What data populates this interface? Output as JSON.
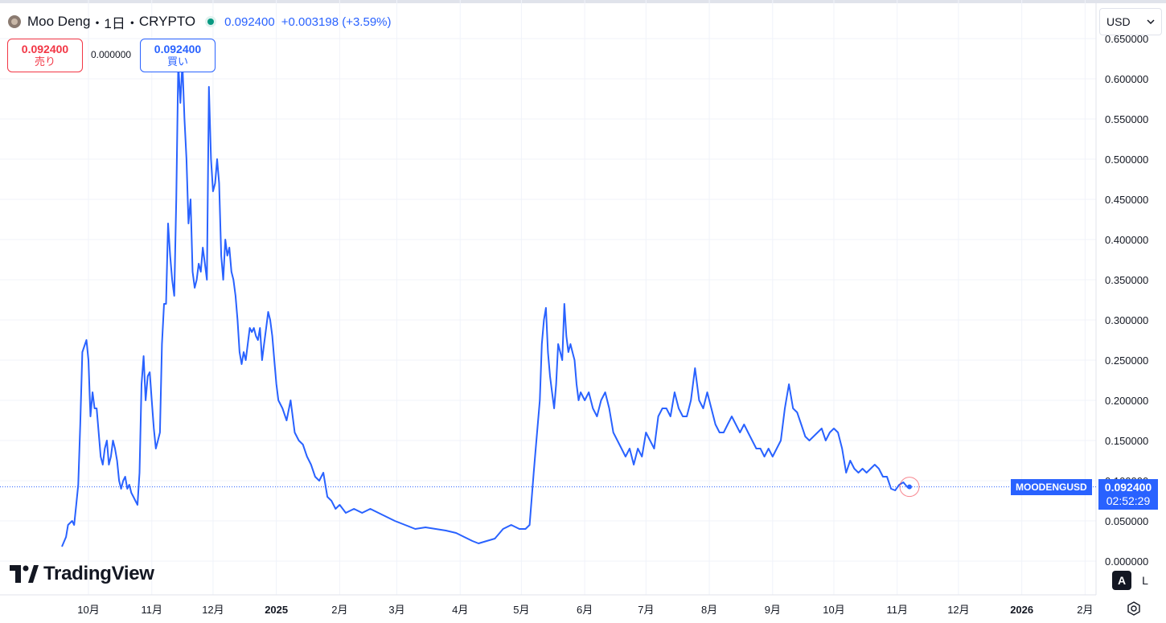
{
  "header": {
    "symbol": "Moo Deng",
    "interval_sep": "・1日・",
    "exchange": "CRYPTO",
    "last_price": "0.092400",
    "change": "+0.003198 (+3.59%)"
  },
  "trade": {
    "sell_price": "0.092400",
    "sell_label": "売り",
    "spread": "0.000000",
    "buy_price": "0.092400",
    "buy_label": "買い"
  },
  "currency": {
    "selected": "USD"
  },
  "price_tag": {
    "symbol": "MOODENGUSD",
    "price": "0.092400",
    "countdown": "02:52:29"
  },
  "logo": {
    "text": "TradingView"
  },
  "scale_buttons": {
    "auto": "A",
    "log": "L"
  },
  "colors": {
    "line": "#2962ff",
    "grid": "#f0f3fa",
    "text": "#131722",
    "sell": "#f23645",
    "accent": "#2962ff"
  },
  "chart_data": {
    "type": "line",
    "title": "Moo Deng・1日・CRYPTO",
    "ylim": [
      0,
      0.65
    ],
    "y_ticks": [
      "0.650000",
      "0.600000",
      "0.550000",
      "0.500000",
      "0.450000",
      "0.400000",
      "0.350000",
      "0.300000",
      "0.250000",
      "0.200000",
      "0.150000",
      "0.100000",
      "0.050000",
      "0.000000"
    ],
    "y_tick_values": [
      0.65,
      0.6,
      0.55,
      0.5,
      0.45,
      0.4,
      0.35,
      0.3,
      0.25,
      0.2,
      0.15,
      0.1,
      0.05,
      0.0
    ],
    "x_ticks": [
      "10月",
      "11月",
      "12月",
      "2025",
      "2月",
      "3月",
      "4月",
      "5月",
      "6月",
      "7月",
      "8月",
      "9月",
      "10月",
      "11月",
      "12月",
      "2026",
      "2月"
    ],
    "x_tick_dates": [
      "2024-10-01",
      "2024-11-01",
      "2024-12-01",
      "2025-01-01",
      "2025-02-01",
      "2025-03-01",
      "2025-04-01",
      "2025-05-01",
      "2025-06-01",
      "2025-07-01",
      "2025-08-01",
      "2025-09-01",
      "2025-10-01",
      "2025-11-01",
      "2025-12-01",
      "2026-01-01",
      "2026-02-01"
    ],
    "last_value": 0.0924,
    "grid": true,
    "series": [
      {
        "points": [
          [
            "2024-09-18",
            0.018
          ],
          [
            "2024-09-20",
            0.03
          ],
          [
            "2024-09-21",
            0.045
          ],
          [
            "2024-09-23",
            0.05
          ],
          [
            "2024-09-24",
            0.045
          ],
          [
            "2024-09-25",
            0.07
          ],
          [
            "2024-09-26",
            0.095
          ],
          [
            "2024-09-27",
            0.17
          ],
          [
            "2024-09-28",
            0.26
          ],
          [
            "2024-09-30",
            0.275
          ],
          [
            "2024-10-01",
            0.25
          ],
          [
            "2024-10-02",
            0.18
          ],
          [
            "2024-10-03",
            0.21
          ],
          [
            "2024-10-04",
            0.19
          ],
          [
            "2024-10-05",
            0.19
          ],
          [
            "2024-10-06",
            0.16
          ],
          [
            "2024-10-07",
            0.13
          ],
          [
            "2024-10-08",
            0.12
          ],
          [
            "2024-10-09",
            0.14
          ],
          [
            "2024-10-10",
            0.15
          ],
          [
            "2024-10-11",
            0.12
          ],
          [
            "2024-10-12",
            0.13
          ],
          [
            "2024-10-13",
            0.15
          ],
          [
            "2024-10-14",
            0.14
          ],
          [
            "2024-10-15",
            0.125
          ],
          [
            "2024-10-16",
            0.1
          ],
          [
            "2024-10-17",
            0.09
          ],
          [
            "2024-10-18",
            0.1
          ],
          [
            "2024-10-19",
            0.105
          ],
          [
            "2024-10-20",
            0.09
          ],
          [
            "2024-10-21",
            0.095
          ],
          [
            "2024-10-22",
            0.085
          ],
          [
            "2024-10-23",
            0.08
          ],
          [
            "2024-10-24",
            0.075
          ],
          [
            "2024-10-25",
            0.07
          ],
          [
            "2024-10-26",
            0.11
          ],
          [
            "2024-10-27",
            0.22
          ],
          [
            "2024-10-28",
            0.255
          ],
          [
            "2024-10-29",
            0.2
          ],
          [
            "2024-10-30",
            0.23
          ],
          [
            "2024-10-31",
            0.235
          ],
          [
            "2024-11-01",
            0.2
          ],
          [
            "2024-11-02",
            0.165
          ],
          [
            "2024-11-03",
            0.14
          ],
          [
            "2024-11-04",
            0.15
          ],
          [
            "2024-11-05",
            0.16
          ],
          [
            "2024-11-06",
            0.27
          ],
          [
            "2024-11-07",
            0.32
          ],
          [
            "2024-11-08",
            0.32
          ],
          [
            "2024-11-09",
            0.42
          ],
          [
            "2024-11-10",
            0.38
          ],
          [
            "2024-11-11",
            0.35
          ],
          [
            "2024-11-12",
            0.33
          ],
          [
            "2024-11-13",
            0.45
          ],
          [
            "2024-11-14",
            0.62
          ],
          [
            "2024-11-15",
            0.57
          ],
          [
            "2024-11-16",
            0.62
          ],
          [
            "2024-11-17",
            0.55
          ],
          [
            "2024-11-18",
            0.5
          ],
          [
            "2024-11-19",
            0.42
          ],
          [
            "2024-11-20",
            0.45
          ],
          [
            "2024-11-21",
            0.36
          ],
          [
            "2024-11-22",
            0.34
          ],
          [
            "2024-11-23",
            0.35
          ],
          [
            "2024-11-24",
            0.37
          ],
          [
            "2024-11-25",
            0.36
          ],
          [
            "2024-11-26",
            0.39
          ],
          [
            "2024-11-27",
            0.37
          ],
          [
            "2024-11-28",
            0.35
          ],
          [
            "2024-11-29",
            0.59
          ],
          [
            "2024-11-30",
            0.5
          ],
          [
            "2024-12-01",
            0.46
          ],
          [
            "2024-12-02",
            0.47
          ],
          [
            "2024-12-03",
            0.5
          ],
          [
            "2024-12-04",
            0.47
          ],
          [
            "2024-12-05",
            0.38
          ],
          [
            "2024-12-06",
            0.35
          ],
          [
            "2024-12-07",
            0.4
          ],
          [
            "2024-12-08",
            0.38
          ],
          [
            "2024-12-09",
            0.39
          ],
          [
            "2024-12-10",
            0.36
          ],
          [
            "2024-12-11",
            0.35
          ],
          [
            "2024-12-12",
            0.33
          ],
          [
            "2024-12-13",
            0.3
          ],
          [
            "2024-12-14",
            0.26
          ],
          [
            "2024-12-15",
            0.245
          ],
          [
            "2024-12-16",
            0.26
          ],
          [
            "2024-12-17",
            0.25
          ],
          [
            "2024-12-18",
            0.27
          ],
          [
            "2024-12-19",
            0.29
          ],
          [
            "2024-12-20",
            0.285
          ],
          [
            "2024-12-21",
            0.29
          ],
          [
            "2024-12-22",
            0.28
          ],
          [
            "2024-12-23",
            0.275
          ],
          [
            "2024-12-24",
            0.29
          ],
          [
            "2024-12-25",
            0.25
          ],
          [
            "2024-12-26",
            0.27
          ],
          [
            "2024-12-27",
            0.29
          ],
          [
            "2024-12-28",
            0.31
          ],
          [
            "2024-12-29",
            0.3
          ],
          [
            "2024-12-30",
            0.28
          ],
          [
            "2024-12-31",
            0.25
          ],
          [
            "2025-01-01",
            0.22
          ],
          [
            "2025-01-02",
            0.2
          ],
          [
            "2025-01-04",
            0.19
          ],
          [
            "2025-01-06",
            0.175
          ],
          [
            "2025-01-08",
            0.2
          ],
          [
            "2025-01-10",
            0.16
          ],
          [
            "2025-01-12",
            0.15
          ],
          [
            "2025-01-14",
            0.145
          ],
          [
            "2025-01-16",
            0.13
          ],
          [
            "2025-01-18",
            0.12
          ],
          [
            "2025-01-20",
            0.105
          ],
          [
            "2025-01-22",
            0.1
          ],
          [
            "2025-01-24",
            0.11
          ],
          [
            "2025-01-26",
            0.08
          ],
          [
            "2025-01-28",
            0.075
          ],
          [
            "2025-01-30",
            0.065
          ],
          [
            "2025-02-01",
            0.07
          ],
          [
            "2025-02-04",
            0.06
          ],
          [
            "2025-02-08",
            0.065
          ],
          [
            "2025-02-12",
            0.06
          ],
          [
            "2025-02-16",
            0.065
          ],
          [
            "2025-02-20",
            0.06
          ],
          [
            "2025-02-24",
            0.055
          ],
          [
            "2025-02-28",
            0.05
          ],
          [
            "2025-03-05",
            0.045
          ],
          [
            "2025-03-10",
            0.04
          ],
          [
            "2025-03-15",
            0.042
          ],
          [
            "2025-03-20",
            0.04
          ],
          [
            "2025-03-25",
            0.038
          ],
          [
            "2025-03-30",
            0.035
          ],
          [
            "2025-04-03",
            0.03
          ],
          [
            "2025-04-07",
            0.025
          ],
          [
            "2025-04-10",
            0.022
          ],
          [
            "2025-04-14",
            0.025
          ],
          [
            "2025-04-18",
            0.028
          ],
          [
            "2025-04-22",
            0.04
          ],
          [
            "2025-04-26",
            0.045
          ],
          [
            "2025-04-30",
            0.04
          ],
          [
            "2025-05-03",
            0.04
          ],
          [
            "2025-05-05",
            0.045
          ],
          [
            "2025-05-07",
            0.11
          ],
          [
            "2025-05-08",
            0.14
          ],
          [
            "2025-05-10",
            0.2
          ],
          [
            "2025-05-11",
            0.27
          ],
          [
            "2025-05-12",
            0.3
          ],
          [
            "2025-05-13",
            0.315
          ],
          [
            "2025-05-14",
            0.26
          ],
          [
            "2025-05-15",
            0.23
          ],
          [
            "2025-05-16",
            0.21
          ],
          [
            "2025-05-17",
            0.19
          ],
          [
            "2025-05-18",
            0.22
          ],
          [
            "2025-05-19",
            0.27
          ],
          [
            "2025-05-20",
            0.26
          ],
          [
            "2025-05-21",
            0.25
          ],
          [
            "2025-05-22",
            0.32
          ],
          [
            "2025-05-23",
            0.28
          ],
          [
            "2025-05-24",
            0.26
          ],
          [
            "2025-05-25",
            0.27
          ],
          [
            "2025-05-26",
            0.26
          ],
          [
            "2025-05-27",
            0.25
          ],
          [
            "2025-05-28",
            0.22
          ],
          [
            "2025-05-29",
            0.2
          ],
          [
            "2025-05-30",
            0.21
          ],
          [
            "2025-06-01",
            0.2
          ],
          [
            "2025-06-03",
            0.21
          ],
          [
            "2025-06-05",
            0.19
          ],
          [
            "2025-06-07",
            0.18
          ],
          [
            "2025-06-09",
            0.2
          ],
          [
            "2025-06-11",
            0.21
          ],
          [
            "2025-06-13",
            0.19
          ],
          [
            "2025-06-15",
            0.16
          ],
          [
            "2025-06-17",
            0.15
          ],
          [
            "2025-06-19",
            0.14
          ],
          [
            "2025-06-21",
            0.13
          ],
          [
            "2025-06-23",
            0.14
          ],
          [
            "2025-06-25",
            0.12
          ],
          [
            "2025-06-27",
            0.14
          ],
          [
            "2025-06-29",
            0.13
          ],
          [
            "2025-07-01",
            0.16
          ],
          [
            "2025-07-03",
            0.15
          ],
          [
            "2025-07-05",
            0.14
          ],
          [
            "2025-07-07",
            0.18
          ],
          [
            "2025-07-09",
            0.19
          ],
          [
            "2025-07-11",
            0.19
          ],
          [
            "2025-07-13",
            0.18
          ],
          [
            "2025-07-15",
            0.21
          ],
          [
            "2025-07-17",
            0.19
          ],
          [
            "2025-07-19",
            0.18
          ],
          [
            "2025-07-21",
            0.18
          ],
          [
            "2025-07-23",
            0.2
          ],
          [
            "2025-07-25",
            0.24
          ],
          [
            "2025-07-27",
            0.2
          ],
          [
            "2025-07-29",
            0.19
          ],
          [
            "2025-07-31",
            0.21
          ],
          [
            "2025-08-02",
            0.19
          ],
          [
            "2025-08-04",
            0.17
          ],
          [
            "2025-08-06",
            0.16
          ],
          [
            "2025-08-08",
            0.16
          ],
          [
            "2025-08-10",
            0.17
          ],
          [
            "2025-08-12",
            0.18
          ],
          [
            "2025-08-14",
            0.17
          ],
          [
            "2025-08-16",
            0.16
          ],
          [
            "2025-08-18",
            0.17
          ],
          [
            "2025-08-20",
            0.16
          ],
          [
            "2025-08-22",
            0.15
          ],
          [
            "2025-08-24",
            0.14
          ],
          [
            "2025-08-26",
            0.14
          ],
          [
            "2025-08-28",
            0.13
          ],
          [
            "2025-08-30",
            0.14
          ],
          [
            "2025-09-01",
            0.13
          ],
          [
            "2025-09-03",
            0.14
          ],
          [
            "2025-09-05",
            0.15
          ],
          [
            "2025-09-07",
            0.19
          ],
          [
            "2025-09-09",
            0.22
          ],
          [
            "2025-09-11",
            0.19
          ],
          [
            "2025-09-13",
            0.185
          ],
          [
            "2025-09-15",
            0.17
          ],
          [
            "2025-09-17",
            0.155
          ],
          [
            "2025-09-19",
            0.15
          ],
          [
            "2025-09-21",
            0.155
          ],
          [
            "2025-09-23",
            0.16
          ],
          [
            "2025-09-25",
            0.165
          ],
          [
            "2025-09-27",
            0.15
          ],
          [
            "2025-09-29",
            0.16
          ],
          [
            "2025-10-01",
            0.165
          ],
          [
            "2025-10-03",
            0.16
          ],
          [
            "2025-10-05",
            0.14
          ],
          [
            "2025-10-07",
            0.11
          ],
          [
            "2025-10-09",
            0.125
          ],
          [
            "2025-10-11",
            0.115
          ],
          [
            "2025-10-13",
            0.11
          ],
          [
            "2025-10-15",
            0.115
          ],
          [
            "2025-10-17",
            0.11
          ],
          [
            "2025-10-19",
            0.115
          ],
          [
            "2025-10-21",
            0.12
          ],
          [
            "2025-10-23",
            0.115
          ],
          [
            "2025-10-25",
            0.105
          ],
          [
            "2025-10-27",
            0.105
          ],
          [
            "2025-10-29",
            0.09
          ],
          [
            "2025-10-31",
            0.088
          ],
          [
            "2025-11-02",
            0.095
          ],
          [
            "2025-11-04",
            0.098
          ],
          [
            "2025-11-06",
            0.092
          ],
          [
            "2025-11-07",
            0.0924
          ]
        ]
      }
    ]
  }
}
